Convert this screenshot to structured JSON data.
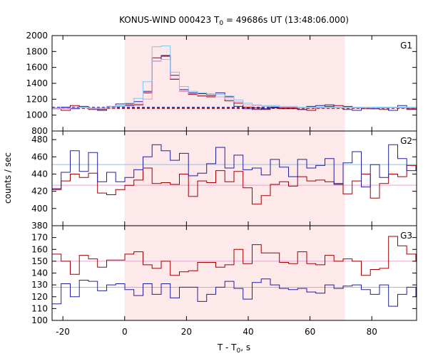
{
  "title_prefix": "KONUS-WIND 000423 T",
  "title_subscript": "0",
  "title_suffix": " = 49686s UT (13:48:06.000)",
  "xlabel_prefix": "T - T",
  "xlabel_subscript": "0",
  "xlabel_suffix": ", s",
  "ylabel": "counts / sec",
  "colors": {
    "red": "#a00000",
    "blue": "#2020a0",
    "lightblue": "#7fc8ee",
    "pink": "#e6a0d0",
    "shade": "#fde8ea"
  },
  "chart_data": {
    "type": "line",
    "x_range": [
      -23.5,
      94.5
    ],
    "x_ticks": [
      -20,
      0,
      20,
      40,
      60,
      80
    ],
    "x_tick_labels": [
      "-20",
      "0",
      "20",
      "40",
      "60",
      "80"
    ],
    "shaded_interval": [
      0,
      71.3
    ],
    "step": 2.944,
    "start": -23.5,
    "panels": [
      {
        "label": "G1",
        "ylim": [
          800,
          2000
        ],
        "y_ticks": [
          800,
          1000,
          1200,
          1400,
          1600,
          1800,
          2000
        ],
        "y_tick_labels": [
          "800",
          "1000",
          "1200",
          "1400",
          "1600",
          "1800",
          "2000"
        ],
        "background_dashed": [
          {
            "name": "red_bg",
            "color": "red",
            "value": 1085
          },
          {
            "name": "blue_bg",
            "color": "blue",
            "value": 1098
          }
        ],
        "series": [
          {
            "color": "red",
            "values": [
              1080,
              1060,
              1120,
              1100,
              1070,
              1070,
              1090,
              1110,
              1140,
              1130,
              1280,
              1720,
              1740,
              1450,
              1300,
              1260,
              1240,
              1230,
              1230,
              1180,
              1150,
              1100,
              1090,
              1070,
              1090,
              1080,
              1080,
              1070,
              1060,
              1090,
              1110,
              1120,
              1110,
              1090,
              1080,
              1080,
              1070,
              1060,
              1090,
              1080,
              1080
            ]
          },
          {
            "color": "blue",
            "values": [
              1090,
              1100,
              1080,
              1110,
              1080,
              1060,
              1110,
              1140,
              1120,
              1170,
              1300,
              1680,
              1750,
              1500,
              1320,
              1280,
              1270,
              1250,
              1280,
              1230,
              1110,
              1080,
              1070,
              1080,
              1100,
              1090,
              1090,
              1070,
              1110,
              1120,
              1130,
              1100,
              1070,
              1060,
              1100,
              1080,
              1090,
              1060,
              1120,
              1070,
              1080
            ]
          },
          {
            "color": "pink",
            "values": [
              1080,
              1080,
              1090,
              1090,
              1080,
              1080,
              1090,
              1110,
              1130,
              1140,
              1200,
              1680,
              1700,
              1460,
              1300,
              1270,
              1250,
              1240,
              1230,
              1200,
              1170,
              1130,
              1120,
              1110,
              1110,
              1100,
              1100,
              1090,
              1090,
              1090,
              1090,
              1090,
              1090,
              1090,
              1090,
              1090,
              1090,
              1090,
              1090,
              1090,
              1090
            ]
          },
          {
            "color": "lightblue",
            "values": [
              1090,
              1090,
              1090,
              1100,
              1090,
              1090,
              1110,
              1120,
              1150,
              1210,
              1420,
              1860,
              1870,
              1540,
              1360,
              1300,
              1280,
              1270,
              1260,
              1240,
              1190,
              1150,
              1130,
              1120,
              1120,
              1110,
              1110,
              1100,
              1100,
              1100,
              1100,
              1100,
              1100,
              1100,
              1100,
              1100,
              1100,
              1100,
              1100,
              1100,
              1100
            ]
          }
        ]
      },
      {
        "label": "G2",
        "ylim": [
          380,
          490
        ],
        "y_ticks": [
          380,
          400,
          420,
          440,
          460,
          480
        ],
        "y_tick_labels": [
          "380",
          "400",
          "420",
          "440",
          "460",
          "480"
        ],
        "hlines": [
          {
            "color": "lightblue",
            "value": 451
          },
          {
            "color": "pink",
            "value": 427
          }
        ],
        "series": [
          {
            "color": "red",
            "values": [
              422,
              432,
              440,
              436,
              441,
              418,
              416,
              422,
              427,
              433,
              447,
              429,
              430,
              428,
              440,
              414,
              432,
              430,
              444,
              431,
              443,
              424,
              405,
              415,
              428,
              431,
              426,
              437,
              432,
              433,
              431,
              429,
              417,
              432,
              440,
              412,
              429,
              440,
              437,
              450,
              445
            ]
          },
          {
            "color": "blue",
            "values": [
              423,
              442,
              467,
              443,
              465,
              431,
              442,
              431,
              436,
              445,
              460,
              474,
              467,
              456,
              464,
              438,
              441,
              452,
              471,
              447,
              462,
              445,
              447,
              439,
              457,
              448,
              437,
              457,
              447,
              450,
              458,
              428,
              453,
              466,
              425,
              451,
              436,
              474,
              458,
              444,
              447
            ]
          }
        ]
      },
      {
        "label": "G3",
        "ylim": [
          100,
          180
        ],
        "y_ticks": [
          100,
          110,
          120,
          130,
          140,
          150,
          160,
          170
        ],
        "y_tick_labels": [
          "100",
          "110",
          "120",
          "130",
          "140",
          "150",
          "160",
          "170"
        ],
        "hlines": [
          {
            "color": "pink",
            "value": 150
          },
          {
            "color": "lightblue",
            "value": 128
          }
        ],
        "series": [
          {
            "color": "red",
            "values": [
              156,
              150,
              139,
              155,
              152,
              145,
              151,
              151,
              156,
              158,
              147,
              144,
              150,
              138,
              141,
              142,
              149,
              149,
              145,
              147,
              160,
              148,
              164,
              157,
              157,
              149,
              148,
              158,
              148,
              147,
              155,
              150,
              152,
              150,
              138,
              143,
              144,
              171,
              163,
              156,
              150
            ]
          },
          {
            "color": "blue",
            "values": [
              114,
              131,
              120,
              134,
              133,
              125,
              130,
              131,
              126,
              121,
              131,
              122,
              131,
              119,
              128,
              128,
              116,
              122,
              128,
              133,
              127,
              118,
              132,
              135,
              130,
              127,
              126,
              127,
              124,
              123,
              130,
              127,
              129,
              130,
              126,
              122,
              130,
              112,
              122,
              128,
              120
            ]
          }
        ]
      }
    ]
  }
}
